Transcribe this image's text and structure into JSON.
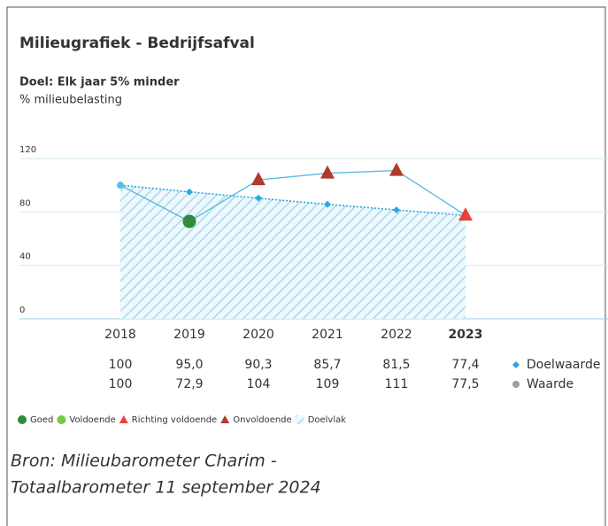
{
  "chart_data": {
    "type": "line",
    "title": "Milieugrafiek - Bedrijfsafval",
    "subtitle": "Doel: Elk jaar 5% minder",
    "y_label": "% milieubelasting",
    "categories": [
      "2018",
      "2019",
      "2020",
      "2021",
      "2022",
      "2023"
    ],
    "highlight": 5,
    "series": [
      {
        "name": "Doelwaarde",
        "color": "#2aa8e0",
        "style": "dotted",
        "marker": "diamond",
        "values": [
          100,
          95.0,
          90.3,
          85.7,
          81.5,
          77.4
        ],
        "value_labels": [
          "100",
          "95,0",
          "90,3",
          "85,7",
          "81,5",
          "77,4"
        ]
      },
      {
        "name": "Waarde",
        "color": "#9e9e9e",
        "line_color": "#5bbbe3",
        "style": "solid",
        "values": [
          100,
          72.9,
          104,
          109,
          111,
          77.5
        ],
        "value_labels": [
          "100",
          "72,9",
          "104",
          "109",
          "111",
          "77,5"
        ],
        "status": [
          null,
          "Goed",
          "Onvoldoende",
          "Onvoldoende",
          "Onvoldoende",
          "Richting voldoende"
        ]
      }
    ],
    "legend": [
      {
        "name": "Goed",
        "color": "#2e8b3a",
        "shape": "circle"
      },
      {
        "name": "Voldoende",
        "color": "#7ac943",
        "shape": "circle"
      },
      {
        "name": "Richting voldoende",
        "color": "#e8413c",
        "shape": "triangle"
      },
      {
        "name": "Onvoldoende",
        "color": "#b03a2e",
        "shape": "triangle"
      },
      {
        "name": "Doelvlak",
        "color": "#a9d9f0",
        "shape": "hatch"
      }
    ],
    "ylim": [
      0,
      120
    ],
    "yticks": [
      0,
      40,
      80,
      120
    ],
    "grid": true,
    "source": [
      "Bron: Milieubarometer Charim -",
      "Totaalbarometer 11 september 2024"
    ]
  }
}
